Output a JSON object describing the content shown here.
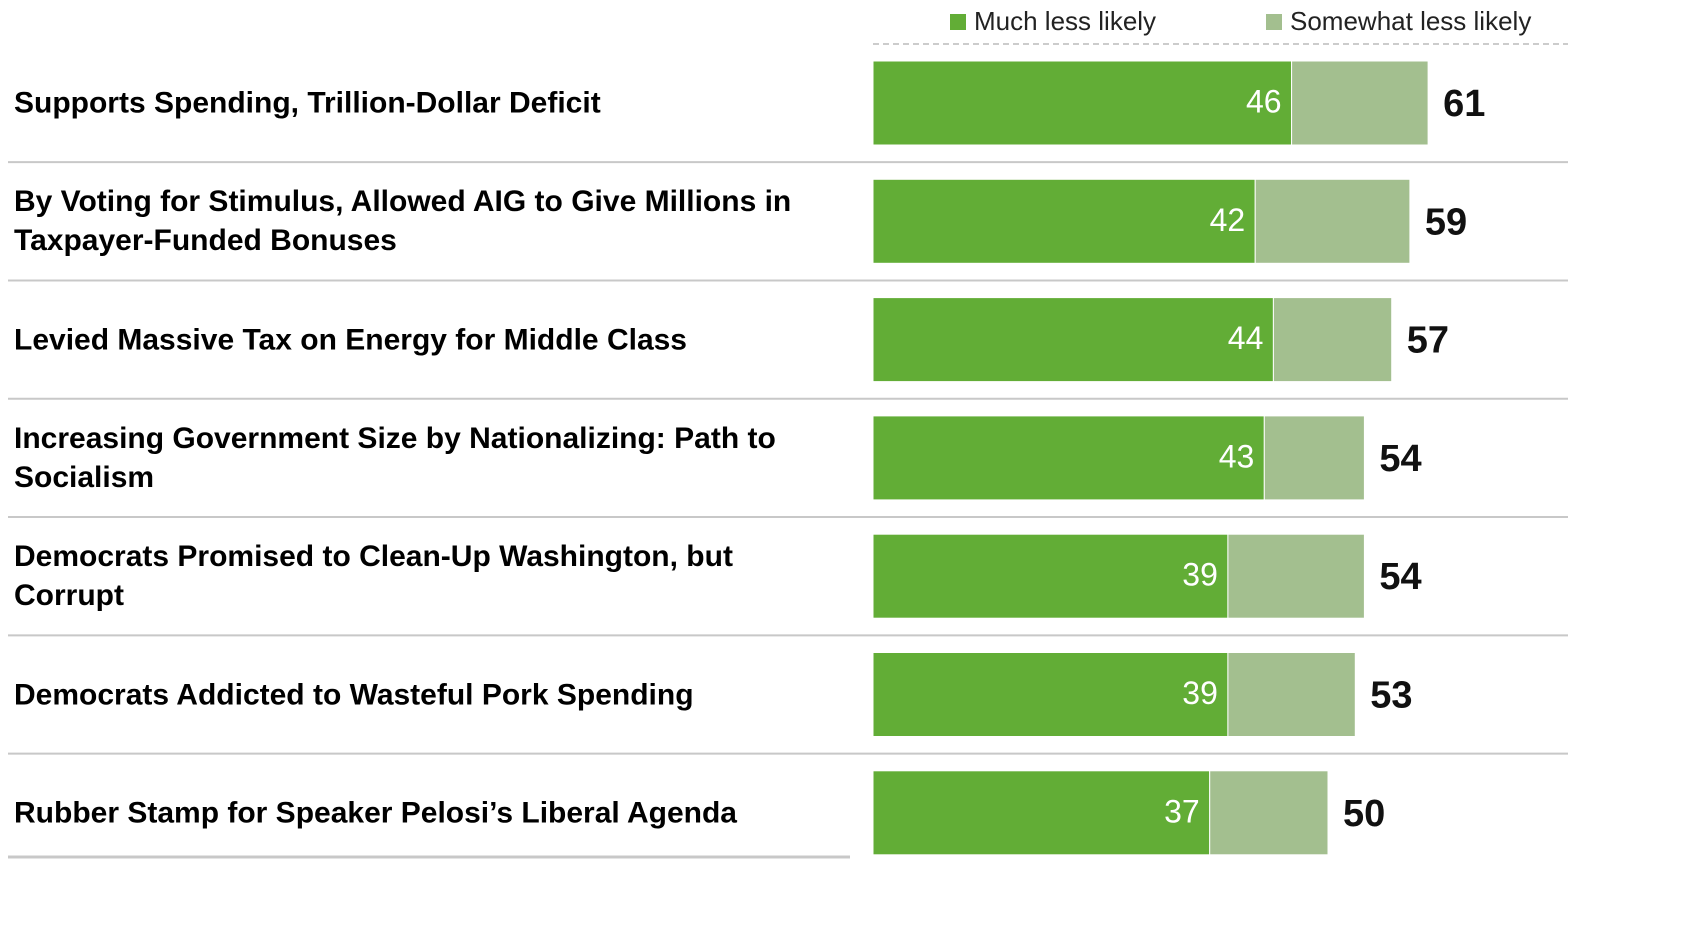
{
  "chart_data": {
    "type": "stacked-bar",
    "categories": [
      "Supports Spending, Trillion-Dollar Deficit",
      "By Voting for Stimulus, Allowed AIG to Give Millions in Taxpayer-Funded Bonuses",
      "Levied Massive Tax on Energy for Middle Class",
      "Increasing Government Size by Nationalizing: Path to Socialism",
      "Democrats Promised to Clean-Up Washington, but Corrupt",
      "Democrats Addicted to Wasteful Pork Spending",
      "Rubber Stamp for Speaker Pelosi’s Liberal Agenda"
    ],
    "series": [
      {
        "name": "Much less likely",
        "color": "#62ad36",
        "values": [
          46,
          42,
          44,
          43,
          39,
          39,
          37
        ]
      },
      {
        "name": "Somewhat less likely",
        "color": "#a3bf8f",
        "values": [
          15,
          17,
          13,
          11,
          15,
          14,
          13
        ]
      }
    ],
    "totals": [
      61,
      59,
      57,
      54,
      54,
      53,
      50
    ],
    "legend": "top-right"
  }
}
